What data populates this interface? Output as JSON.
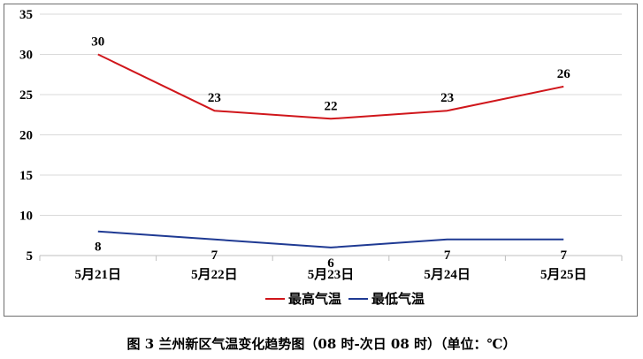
{
  "chart_data": {
    "type": "line",
    "categories": [
      "5月21日",
      "5月22日",
      "5月23日",
      "5月24日",
      "5月25日"
    ],
    "series": [
      {
        "name": "最高气温",
        "values": [
          30,
          23,
          22,
          23,
          26
        ],
        "color": "#d0161b"
      },
      {
        "name": "最低气温",
        "values": [
          8,
          7,
          6,
          7,
          7
        ],
        "color": "#1f3a93"
      }
    ],
    "ylim": [
      5,
      35
    ],
    "yticks": [
      5,
      10,
      15,
      20,
      25,
      30,
      35
    ],
    "grid": true,
    "legend": "bottom"
  },
  "caption": "图 3  兰州新区气温变化趋势图（08 时-次日 08 时）（单位：℃）"
}
